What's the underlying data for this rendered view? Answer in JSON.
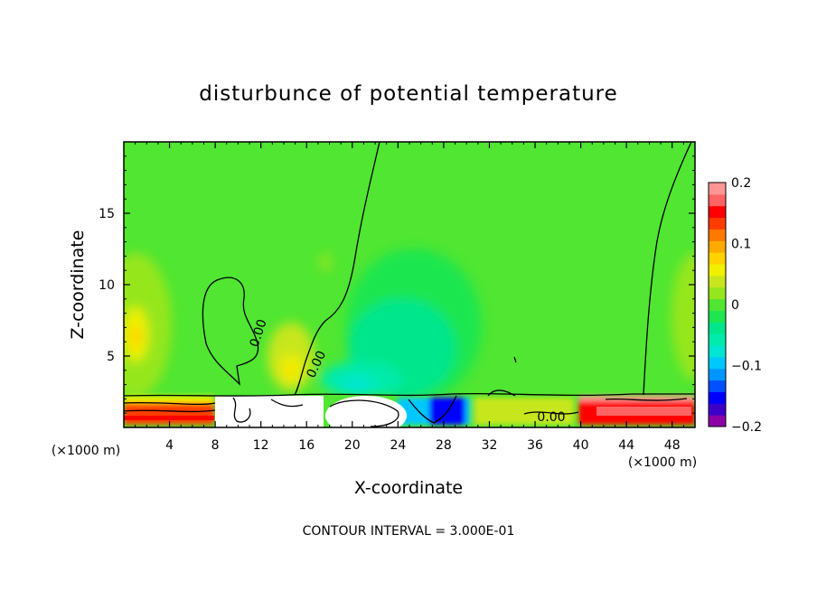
{
  "chart_data": {
    "type": "heatmap",
    "title": "disturbunce of potential temperature",
    "xlabel": "X-coordinate",
    "ylabel": "Z-coordinate",
    "x_unit_label": "(×1000 m)",
    "x_unit_label_right": "(×1000 m)",
    "xlim": [
      0,
      50
    ],
    "ylim": [
      0,
      20
    ],
    "xticks": [
      4,
      8,
      12,
      16,
      20,
      24,
      28,
      32,
      36,
      40,
      44,
      48
    ],
    "yticks": [
      5,
      10,
      15
    ],
    "colorbar": {
      "range": [
        -0.2,
        0.2
      ],
      "ticks": [
        0.2,
        0.1,
        0,
        -0.1,
        -0.2
      ],
      "tick_labels": [
        "0.2",
        "0.1",
        "0",
        "−0.1",
        "−0.2"
      ],
      "colors": [
        "#8c00a6",
        "#3c00c8",
        "#0000ff",
        "#0050ff",
        "#0096ff",
        "#00c8ff",
        "#00e6d2",
        "#00ebaa",
        "#00e68c",
        "#1ee650",
        "#50e632",
        "#96e61e",
        "#c8e61e",
        "#f0f000",
        "#ffd200",
        "#ffaa00",
        "#ff7800",
        "#ff3c00",
        "#ff0000",
        "#ff6464",
        "#ff9696"
      ]
    },
    "background_value": 0.0,
    "features": [
      {
        "name": "left warm band",
        "x": 1.0,
        "z": 7.0,
        "value": 0.06
      },
      {
        "name": "warm bubble",
        "x": 15.0,
        "z": 4.5,
        "value": 0.07
      },
      {
        "name": "cold plume",
        "x": 24.0,
        "z": 6.0,
        "value": -0.03
      },
      {
        "name": "right warm edge",
        "x": 50.0,
        "z": 8.0,
        "value": 0.05
      },
      {
        "name": "surface layer",
        "z_range": [
          0,
          2.5
        ],
        "value_range": [
          -0.2,
          0.2
        ]
      }
    ],
    "contours": [
      {
        "level": "0.00",
        "label_positions": [
          [
            11.0,
            6.2
          ],
          [
            17.5,
            4.6
          ],
          [
            37.5,
            0.8
          ]
        ]
      }
    ],
    "footnote": "CONTOUR INTERVAL = 3.000E-01"
  }
}
